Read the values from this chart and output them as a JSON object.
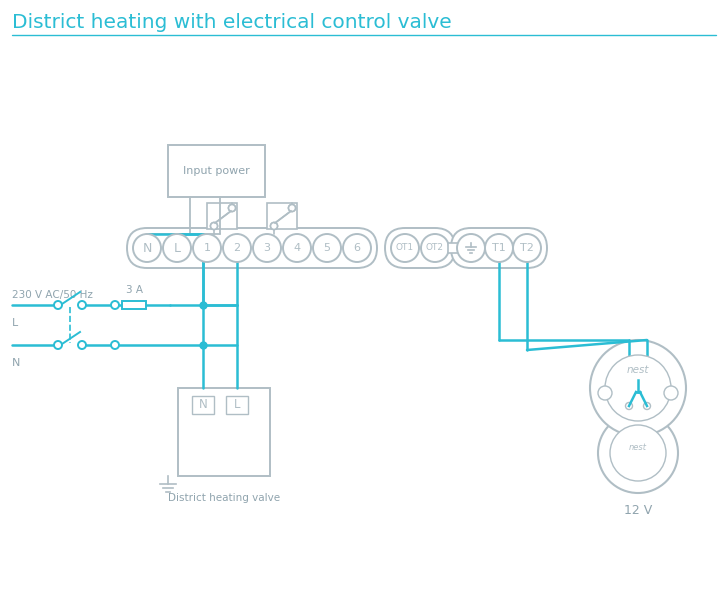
{
  "title": "District heating with electrical control valve",
  "title_color": "#2bbdd4",
  "bg_color": "#ffffff",
  "lc": "#2bbdd4",
  "gc": "#b0bec5",
  "dgc": "#90a4ae",
  "label_230": "230 V AC/50 Hz",
  "label_L": "L",
  "label_N": "N",
  "label_3A": "3 A",
  "label_valve": "District heating valve",
  "label_12V": "12 V",
  "label_nest": "nest",
  "label_input": "Input power",
  "terminal_main": [
    "N",
    "L",
    "1",
    "2",
    "3",
    "4",
    "5",
    "6"
  ],
  "terminal_ot": [
    "OT1",
    "OT2"
  ],
  "terminal_right": [
    "±",
    "T1",
    "T2"
  ]
}
